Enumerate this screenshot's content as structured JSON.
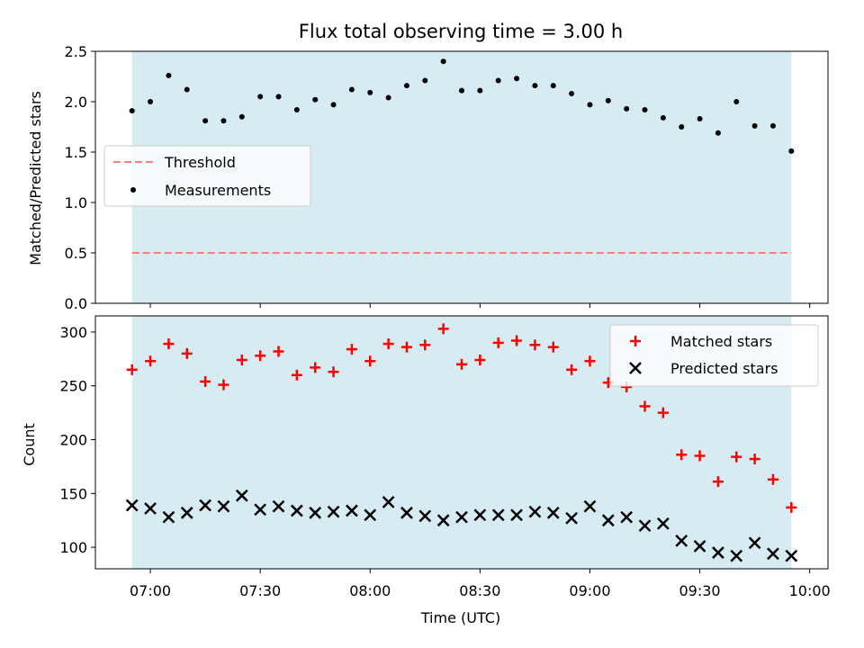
{
  "chart_data": [
    {
      "type": "scatter",
      "title": "Flux total observing time = 3.00 h",
      "ylabel": "Matched/Predicted stars",
      "xlabel": "",
      "ylim": [
        0,
        2.5
      ],
      "yticks": [
        "0.0",
        "0.5",
        "1.0",
        "1.5",
        "2.0",
        "2.5"
      ],
      "grid": false,
      "legend_position": "center-left",
      "shaded_span": [
        "06:55",
        "09:55"
      ],
      "shade_color": "#add8e6",
      "threshold": {
        "name": "Threshold",
        "value": 0.5,
        "color": "#f08080",
        "style": "dashed"
      },
      "series": [
        {
          "name": "Measurements",
          "marker": "dot",
          "color": "#000000",
          "x": [
            "06:55",
            "07:00",
            "07:05",
            "07:10",
            "07:15",
            "07:20",
            "07:25",
            "07:30",
            "07:35",
            "07:40",
            "07:45",
            "07:50",
            "07:55",
            "08:00",
            "08:05",
            "08:10",
            "08:15",
            "08:20",
            "08:25",
            "08:30",
            "08:35",
            "08:40",
            "08:45",
            "08:50",
            "08:55",
            "09:00",
            "09:05",
            "09:10",
            "09:15",
            "09:20",
            "09:25",
            "09:30",
            "09:35",
            "09:40",
            "09:45",
            "09:50",
            "09:55"
          ],
          "values": [
            1.91,
            2.0,
            2.26,
            2.12,
            1.81,
            1.81,
            1.85,
            2.05,
            2.05,
            1.92,
            2.02,
            1.97,
            2.12,
            2.09,
            2.04,
            2.16,
            2.21,
            2.4,
            2.11,
            2.11,
            2.21,
            2.23,
            2.16,
            2.16,
            2.08,
            1.97,
            2.01,
            1.93,
            1.92,
            1.84,
            1.75,
            1.83,
            1.69,
            2.0,
            1.76,
            1.76,
            1.51
          ]
        }
      ]
    },
    {
      "type": "scatter",
      "title": "",
      "ylabel": "Count",
      "xlabel": "Time (UTC)",
      "ylim": [
        80,
        315
      ],
      "yticks": [
        "100",
        "150",
        "200",
        "250",
        "300"
      ],
      "xticks": [
        "07:00",
        "07:30",
        "08:00",
        "08:30",
        "09:00",
        "09:30",
        "10:00"
      ],
      "xlim": [
        "06:45",
        "10:05"
      ],
      "grid": false,
      "legend_position": "top-right",
      "shaded_span": [
        "06:55",
        "09:55"
      ],
      "shade_color": "#add8e6",
      "series": [
        {
          "name": "Matched stars",
          "marker": "plus",
          "color": "#ff0000",
          "x": [
            "06:55",
            "07:00",
            "07:05",
            "07:10",
            "07:15",
            "07:20",
            "07:25",
            "07:30",
            "07:35",
            "07:40",
            "07:45",
            "07:50",
            "07:55",
            "08:00",
            "08:05",
            "08:10",
            "08:15",
            "08:20",
            "08:25",
            "08:30",
            "08:35",
            "08:40",
            "08:45",
            "08:50",
            "08:55",
            "09:00",
            "09:05",
            "09:10",
            "09:15",
            "09:20",
            "09:25",
            "09:30",
            "09:35",
            "09:40",
            "09:45",
            "09:50",
            "09:55"
          ],
          "values": [
            265,
            273,
            289,
            280,
            254,
            251,
            274,
            278,
            282,
            260,
            267,
            263,
            284,
            273,
            289,
            286,
            288,
            303,
            270,
            274,
            290,
            292,
            288,
            286,
            265,
            273,
            253,
            249,
            231,
            225,
            186,
            185,
            161,
            184,
            182,
            163,
            137
          ]
        },
        {
          "name": "Predicted stars",
          "marker": "x",
          "color": "#000000",
          "x": [
            "06:55",
            "07:00",
            "07:05",
            "07:10",
            "07:15",
            "07:20",
            "07:25",
            "07:30",
            "07:35",
            "07:40",
            "07:45",
            "07:50",
            "07:55",
            "08:00",
            "08:05",
            "08:10",
            "08:15",
            "08:20",
            "08:25",
            "08:30",
            "08:35",
            "08:40",
            "08:45",
            "08:50",
            "08:55",
            "09:00",
            "09:05",
            "09:10",
            "09:15",
            "09:20",
            "09:25",
            "09:30",
            "09:35",
            "09:40",
            "09:45",
            "09:50",
            "09:55"
          ],
          "values": [
            139,
            136,
            128,
            132,
            139,
            138,
            148,
            135,
            138,
            134,
            132,
            133,
            134,
            130,
            142,
            132,
            129,
            125,
            128,
            130,
            130,
            130,
            133,
            132,
            127,
            138,
            125,
            128,
            120,
            122,
            106,
            101,
            95,
            92,
            104,
            94,
            92
          ]
        }
      ]
    }
  ]
}
